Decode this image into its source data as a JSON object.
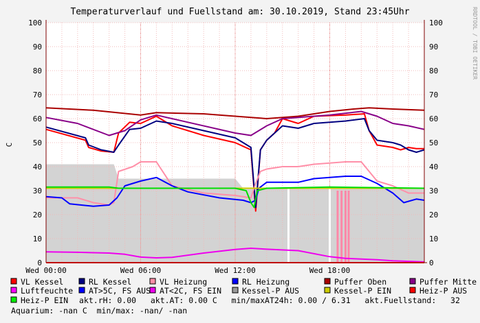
{
  "header": {
    "title": "Temperaturverlauf und Fuellstand am: 30.10.2019, Stand 23:45Uhr",
    "watermark": "RRDTOOL / TOBI OETIKER"
  },
  "chart_data": {
    "type": "line",
    "ylabel": "C",
    "ylim": [
      0,
      100
    ],
    "yticks": [
      "0",
      "10",
      "20",
      "30",
      "40",
      "50",
      "60",
      "70",
      "80",
      "90",
      "100"
    ],
    "xlim_hours": [
      0,
      24
    ],
    "xticks": [
      {
        "h": 0,
        "label": "Wed 00:00"
      },
      {
        "h": 6,
        "label": "Wed 06:00"
      },
      {
        "h": 12,
        "label": "Wed 12:00"
      },
      {
        "h": 18,
        "label": "Wed 18:00"
      }
    ],
    "grid": true,
    "background_area": {
      "name": "Kessel-P AUS",
      "points": [
        [
          0,
          41
        ],
        [
          4.3,
          41
        ],
        [
          4.6,
          35
        ],
        [
          6,
          35
        ],
        [
          9,
          35
        ],
        [
          11,
          35
        ],
        [
          12,
          35
        ],
        [
          12.5,
          31
        ],
        [
          14,
          31
        ],
        [
          23.5,
          31
        ],
        [
          24,
          31
        ]
      ]
    },
    "series": [
      {
        "name": "VL Kessel",
        "color": "#ff0000",
        "points": [
          [
            0,
            55.5
          ],
          [
            2.5,
            51
          ],
          [
            2.7,
            48
          ],
          [
            3.5,
            46.5
          ],
          [
            4.3,
            46
          ],
          [
            4.6,
            54
          ],
          [
            5.3,
            58.5
          ],
          [
            6,
            58
          ],
          [
            7,
            61
          ],
          [
            8,
            57
          ],
          [
            10,
            53
          ],
          [
            12,
            50
          ],
          [
            12.5,
            48.5
          ],
          [
            13,
            47
          ],
          [
            13.3,
            21.5
          ],
          [
            13.6,
            47
          ],
          [
            14,
            51
          ],
          [
            14.5,
            54
          ],
          [
            15,
            60
          ],
          [
            15.5,
            59
          ],
          [
            16,
            58
          ],
          [
            17,
            61
          ],
          [
            19,
            61.5
          ],
          [
            20.2,
            62
          ],
          [
            20.5,
            55
          ],
          [
            21,
            49
          ],
          [
            22,
            48
          ],
          [
            22.5,
            47
          ],
          [
            23,
            48
          ],
          [
            23.5,
            47.5
          ],
          [
            24,
            47.5
          ]
        ]
      },
      {
        "name": "RL Kessel",
        "color": "#000080",
        "points": [
          [
            0,
            56.5
          ],
          [
            2.5,
            52
          ],
          [
            2.7,
            49
          ],
          [
            3.5,
            47
          ],
          [
            4.3,
            46
          ],
          [
            4.6,
            49
          ],
          [
            5.3,
            55.5
          ],
          [
            6,
            56
          ],
          [
            7,
            59
          ],
          [
            8,
            58
          ],
          [
            10,
            55
          ],
          [
            12,
            52
          ],
          [
            12.5,
            50
          ],
          [
            13,
            48
          ],
          [
            13.3,
            23
          ],
          [
            13.6,
            47
          ],
          [
            14,
            51
          ],
          [
            14.5,
            54
          ],
          [
            15,
            57
          ],
          [
            16,
            56
          ],
          [
            17,
            58
          ],
          [
            19,
            59
          ],
          [
            20.2,
            60
          ],
          [
            20.5,
            55
          ],
          [
            21,
            51
          ],
          [
            22,
            50
          ],
          [
            22.5,
            49
          ],
          [
            23,
            47
          ],
          [
            23.5,
            46
          ],
          [
            24,
            47
          ]
        ]
      },
      {
        "name": "VL Heizung",
        "color": "#ff8fa8",
        "points": [
          [
            0,
            27
          ],
          [
            2,
            27
          ],
          [
            3,
            25
          ],
          [
            4,
            24
          ],
          [
            4.3,
            25
          ],
          [
            4.6,
            38
          ],
          [
            5.5,
            40
          ],
          [
            6,
            42
          ],
          [
            7,
            42
          ],
          [
            8,
            32
          ],
          [
            10,
            29
          ],
          [
            12,
            28
          ],
          [
            13,
            27
          ],
          [
            13.3,
            33
          ],
          [
            13.6,
            38
          ],
          [
            14,
            39
          ],
          [
            15,
            40
          ],
          [
            16,
            40
          ],
          [
            17,
            41
          ],
          [
            19,
            42
          ],
          [
            20,
            42
          ],
          [
            20.5,
            38
          ],
          [
            21,
            34
          ],
          [
            22,
            32
          ],
          [
            23,
            29
          ],
          [
            24,
            29
          ]
        ]
      },
      {
        "name": "RL Heizung",
        "color": "#0000ff",
        "points": [
          [
            0,
            27.5
          ],
          [
            1,
            27
          ],
          [
            1.5,
            24.5
          ],
          [
            3,
            23.5
          ],
          [
            4,
            24
          ],
          [
            4.5,
            27
          ],
          [
            5,
            32
          ],
          [
            6,
            34
          ],
          [
            7,
            35.5
          ],
          [
            8,
            32
          ],
          [
            9,
            29.5
          ],
          [
            11,
            27
          ],
          [
            12.5,
            26
          ],
          [
            13,
            25
          ],
          [
            13.3,
            26
          ],
          [
            13.5,
            31
          ],
          [
            14,
            33.5
          ],
          [
            16,
            33.5
          ],
          [
            17,
            35
          ],
          [
            18,
            35.5
          ],
          [
            19,
            36
          ],
          [
            20,
            36
          ],
          [
            21,
            33
          ],
          [
            22,
            29
          ],
          [
            22.7,
            25
          ],
          [
            23.5,
            26.5
          ],
          [
            24,
            26
          ]
        ]
      },
      {
        "name": "Puffer Oben",
        "color": "#aa0000",
        "points": [
          [
            0,
            64.5
          ],
          [
            3,
            63.5
          ],
          [
            6,
            61.5
          ],
          [
            7,
            62.5
          ],
          [
            10,
            62
          ],
          [
            12,
            61
          ],
          [
            14,
            60
          ],
          [
            15,
            60.5
          ],
          [
            16,
            61
          ],
          [
            18,
            63
          ],
          [
            19.5,
            64
          ],
          [
            20.5,
            64.5
          ],
          [
            22,
            64
          ],
          [
            24,
            63.5
          ]
        ]
      },
      {
        "name": "Puffer Mitte",
        "color": "#880088",
        "points": [
          [
            0,
            60.5
          ],
          [
            2,
            58
          ],
          [
            4,
            53
          ],
          [
            5,
            55
          ],
          [
            6,
            59.5
          ],
          [
            7,
            61.5
          ],
          [
            9,
            58.5
          ],
          [
            12,
            54
          ],
          [
            13,
            53
          ],
          [
            14,
            57
          ],
          [
            15,
            60
          ],
          [
            16,
            60.5
          ],
          [
            18,
            61.5
          ],
          [
            20,
            63
          ],
          [
            21,
            61
          ],
          [
            22,
            58
          ],
          [
            23,
            57
          ],
          [
            24,
            55.5
          ]
        ]
      },
      {
        "name": "Luftfeuchte",
        "color": "#ff00ff",
        "points": [
          [
            0,
            0
          ],
          [
            24,
            0
          ]
        ]
      },
      {
        "name": "AT>5C, FS AUS",
        "color": "#0000ff",
        "points": [
          [
            0,
            0
          ],
          [
            24,
            0
          ]
        ]
      },
      {
        "name": "AT<2C, FS EIN",
        "color": "#ee00ee",
        "points": [
          [
            0,
            4.5
          ],
          [
            2,
            4.3
          ],
          [
            4,
            4
          ],
          [
            5,
            3.5
          ],
          [
            6,
            2.3
          ],
          [
            7,
            2
          ],
          [
            8,
            2.2
          ],
          [
            10,
            4
          ],
          [
            12,
            5.5
          ],
          [
            13,
            6
          ],
          [
            14,
            5.6
          ],
          [
            16,
            5
          ],
          [
            18,
            2.5
          ],
          [
            19,
            1.8
          ],
          [
            20,
            1.5
          ],
          [
            21,
            1.2
          ],
          [
            22,
            0.8
          ],
          [
            24,
            0.3
          ]
        ]
      },
      {
        "name": "Kessel-P EIN",
        "color": "#cccc00",
        "points": [
          [
            0,
            31
          ],
          [
            24,
            31
          ]
        ]
      },
      {
        "name": "Heiz-P AUS",
        "color": "#ff0000",
        "points": [
          [
            0,
            0
          ],
          [
            24,
            0
          ]
        ]
      },
      {
        "name": "Heiz-P EIN",
        "color": "#00dd00",
        "points": [
          [
            0,
            31.5
          ],
          [
            4,
            31.5
          ],
          [
            4.6,
            31
          ],
          [
            6,
            31
          ],
          [
            9,
            31
          ],
          [
            12,
            31
          ],
          [
            12.7,
            30
          ],
          [
            13,
            25
          ],
          [
            13.2,
            23
          ],
          [
            13.4,
            30
          ],
          [
            14,
            31
          ],
          [
            18,
            31.5
          ],
          [
            24,
            31
          ]
        ]
      }
    ],
    "pulses": [
      {
        "name": "Kessel-P AUS",
        "color": "#ffffff",
        "h": 15.38,
        "value": 31
      },
      {
        "name": "Kessel-P AUS",
        "color": "#ffffff",
        "h": 18.0,
        "value": 31
      },
      {
        "name": "Heiz-P AUS",
        "color": "#ff88a8",
        "h": 18.5,
        "value": 30
      },
      {
        "name": "Heiz-P AUS",
        "color": "#ff88a8",
        "h": 18.75,
        "value": 30
      },
      {
        "name": "Heiz-P AUS",
        "color": "#ff88a8",
        "h": 19.0,
        "value": 30
      },
      {
        "name": "Heiz-P AUS",
        "color": "#ff88a8",
        "h": 19.2,
        "value": 30
      }
    ]
  },
  "legend": {
    "row1": [
      {
        "label": "VL Kessel",
        "color": "#ff0000"
      },
      {
        "label": "RL Kessel",
        "color": "#000080"
      },
      {
        "label": "VL Heizung",
        "color": "#ff8fa8"
      },
      {
        "label": "RL Heizung",
        "color": "#0000ff"
      },
      {
        "label": "Puffer Oben",
        "color": "#aa0000"
      },
      {
        "label": "Puffer Mitte",
        "color": "#880088"
      }
    ],
    "row2": [
      {
        "label": "Luftfeuchte",
        "color": "#ff00ff"
      },
      {
        "label": "AT>5C, FS AUS",
        "color": "#0000ff"
      },
      {
        "label": "AT<2C, FS EIN",
        "color": "#ee00ee"
      },
      {
        "label": "Kessel-P AUS",
        "color": "#999999"
      },
      {
        "label": "Kessel-P EIN",
        "color": "#cccc00"
      },
      {
        "label": "Heiz-P AUS",
        "color": "#ff0000"
      }
    ],
    "row3_swatch": {
      "label": "Heiz-P EIN",
      "color": "#00ee00"
    },
    "row3_text": "akt.rH: 0.00   akt.AT: 0.00 C   min/maxAT24h: 0.00 / 6.31   akt.Fuellstand:   32",
    "row4_text": "Aquarium: -nan C  min/max: -nan/ -nan"
  }
}
